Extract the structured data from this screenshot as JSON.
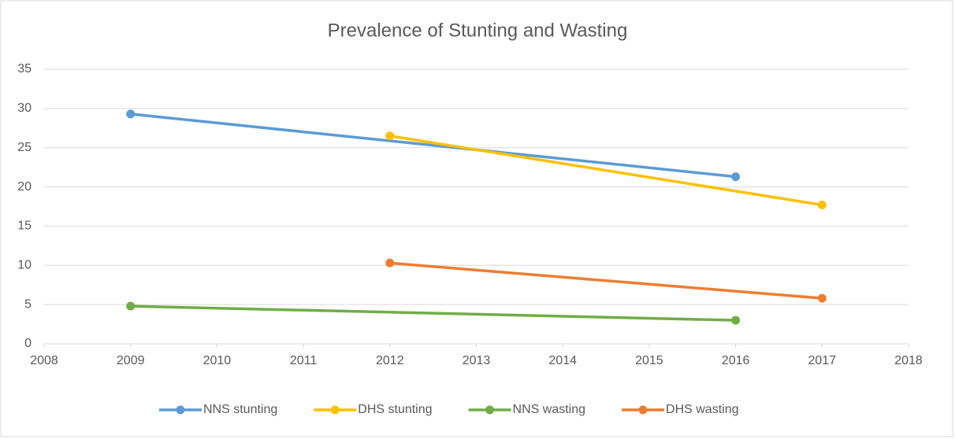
{
  "chart_data": {
    "type": "line",
    "title": "Prevalence of Stunting and Wasting",
    "xlim": [
      2008,
      2018
    ],
    "xticks": [
      2008,
      2009,
      2010,
      2011,
      2012,
      2013,
      2014,
      2015,
      2016,
      2017,
      2018
    ],
    "ylim": [
      0,
      35
    ],
    "yticks": [
      0,
      5,
      10,
      15,
      20,
      25,
      30,
      35
    ],
    "grid": true,
    "legend": "bottom",
    "series": [
      {
        "name": "NNS stunting",
        "color": "#5b9bd5",
        "x": [
          2009,
          2016
        ],
        "values": [
          29.3,
          21.3
        ]
      },
      {
        "name": "DHS stunting",
        "color": "#ffc000",
        "x": [
          2012,
          2017
        ],
        "values": [
          26.5,
          17.7
        ]
      },
      {
        "name": "NNS wasting",
        "color": "#70ad47",
        "x": [
          2009,
          2016
        ],
        "values": [
          4.8,
          3.0
        ]
      },
      {
        "name": "DHS wasting",
        "color": "#ed7d31",
        "x": [
          2012,
          2017
        ],
        "values": [
          10.3,
          5.8
        ]
      }
    ]
  }
}
